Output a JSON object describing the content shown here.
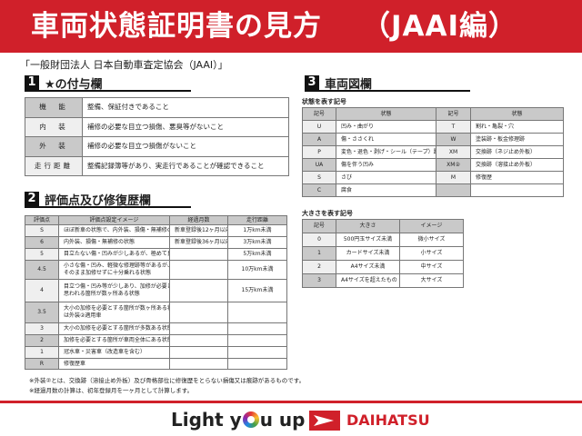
{
  "header": {
    "title": "車両状態証明書の見方",
    "subtitle": "（JAAI編）",
    "organization": "「一般財団法人 日本自動車査定協会（JAAI）」"
  },
  "colors": {
    "brand": "#d0202a",
    "header_cell": "#c9c9c9",
    "light_cell": "#efefef"
  },
  "section1": {
    "number": "1",
    "title": "★の付与欄",
    "rows": [
      [
        "機　能",
        "整備、保証付きであること"
      ],
      [
        "内　装",
        "補修の必要な目立つ損傷、悪臭等がないこと"
      ],
      [
        "外　装",
        "補修の必要な目立つ損傷がないこと"
      ],
      [
        "走行距離",
        "整備記録簿等があり、実走行であることが確認できること"
      ]
    ]
  },
  "section2": {
    "number": "2",
    "title": "評価点及び修復歴欄",
    "headers": [
      "評価点",
      "評価点設定イメージ",
      "経過月数",
      "走行距離"
    ],
    "rows": [
      [
        "S",
        "ほぼ新車の状態で、内外装、損傷・無補修の状態",
        "新車登録後12ヶ月以内",
        "1万km未満"
      ],
      [
        "6",
        "内外装、損傷・無補修の状態",
        "新車登録後36ヶ月以内",
        "3万km未満"
      ],
      [
        "5",
        "目立たない傷・凹みが少しあるが、極めて良好な状態",
        "",
        "5万km未満"
      ],
      [
        "4.5",
        "小さな傷・凹み、軽微な修理跡等があるが、\nそのまま加修せずに十分乗れる状態",
        "",
        "10万km未満"
      ],
      [
        "4",
        "目立つ傷・凹み等が少しあり、加修が必要と\n思われる箇所が数ヶ所ある状態",
        "",
        "15万km未満"
      ],
      [
        "3.5",
        "大小の加修を必要とする箇所が数ヶ所ある状態又\nは外装②適用車",
        "",
        ""
      ],
      [
        "3",
        "大小の加修を必要とする箇所が多数ある状態",
        "",
        ""
      ],
      [
        "2",
        "加修を必要とする箇所が車両全体にある状態",
        "",
        ""
      ],
      [
        "1",
        "冠水車・災害車（改造車を含む）",
        "",
        ""
      ],
      [
        "R",
        "修復歴車",
        "",
        ""
      ]
    ],
    "notes": [
      "※外装②とは、交換跡（溶接止め外板）及び骨格部位に修復歴をとらない損傷又は痕跡があるものです。",
      "※経過月数の計算は、初年登録月を一ヶ月として計算します。"
    ]
  },
  "section3": {
    "number": "3",
    "title": "車両図欄",
    "condition_caption": "状態を表す記号",
    "condition_headers": [
      "記号",
      "状態",
      "記号",
      "状態"
    ],
    "condition_rows": [
      [
        "U",
        "凹み・曲がり",
        "T",
        "割れ・亀裂・穴"
      ],
      [
        "A",
        "傷・ささくれ",
        "W",
        "塗装跡・板金修理跡"
      ],
      [
        "P",
        "変色・退色・剥げ・シール（テープ）跡",
        "XM",
        "交換跡（ネジ止め外板）"
      ],
      [
        "UA",
        "傷を伴う凹み",
        "XM②",
        "交換跡（溶接止め外板）"
      ],
      [
        "S",
        "さび",
        "M",
        "修復歴"
      ],
      [
        "C",
        "腐食",
        "",
        ""
      ]
    ],
    "size_caption": "大きさを表す記号",
    "size_headers": [
      "記号",
      "大きさ",
      "イメージ"
    ],
    "size_rows": [
      [
        "0",
        "500円玉サイズ未満",
        "微小サイズ"
      ],
      [
        "1",
        "カードサイズ未満",
        "小サイズ"
      ],
      [
        "2",
        "A4サイズ未満",
        "中サイズ"
      ],
      [
        "3",
        "A4サイズを超えたもの",
        "大サイズ"
      ]
    ]
  },
  "footer": {
    "slogan_pre": "Light y",
    "slogan_post": "u up",
    "brand": "DAIHATSU"
  }
}
